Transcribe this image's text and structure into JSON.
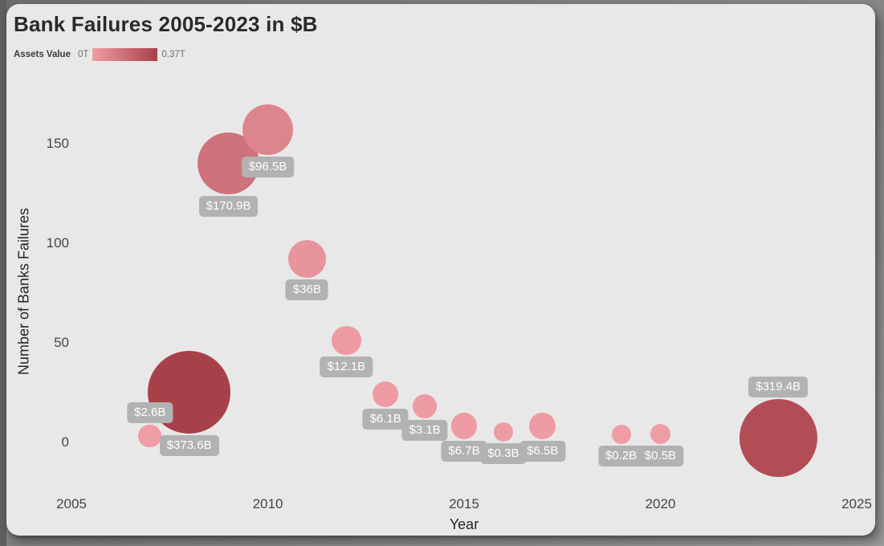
{
  "chart_data": {
    "type": "scatter",
    "title": "Bank Failures 2005-2023 in $B",
    "xlabel": "Year",
    "ylabel": "Number of Banks Failures",
    "x_ticks": [
      2005,
      2010,
      2015,
      2020,
      2025
    ],
    "y_ticks": [
      0,
      50,
      100,
      150
    ],
    "xlim": [
      2005,
      2025
    ],
    "ylim": [
      0,
      160
    ],
    "grid": false,
    "legend": {
      "title": "Assets Value",
      "min_label": "0T",
      "max_label": "0.37T",
      "position": "top-left"
    },
    "size_encoding": "assets_value_billions",
    "color_encoding": "assets_value_billions",
    "colors": {
      "bubble_min": "#ef9da5",
      "bubble_max": "#a84049",
      "label_bg": "#b2b2b2",
      "label_text": "#ffffff"
    },
    "points": [
      {
        "year": 2007,
        "failures": 3,
        "assets_b": 2.6,
        "label": "$2.6B",
        "label_position": "above"
      },
      {
        "year": 2008,
        "failures": 25,
        "assets_b": 373.6,
        "label": "$373.6B",
        "label_position": "below"
      },
      {
        "year": 2009,
        "failures": 140,
        "assets_b": 170.9,
        "label": "$170.9B",
        "label_position": "below"
      },
      {
        "year": 2010,
        "failures": 157,
        "assets_b": 96.5,
        "label": "$96.5B",
        "label_position": "below"
      },
      {
        "year": 2011,
        "failures": 92,
        "assets_b": 36,
        "label": "$36B",
        "label_position": "below"
      },
      {
        "year": 2012,
        "failures": 51,
        "assets_b": 12.1,
        "label": "$12.1B",
        "label_position": "below"
      },
      {
        "year": 2013,
        "failures": 24,
        "assets_b": 6.1,
        "label": "$6.1B",
        "label_position": "below"
      },
      {
        "year": 2014,
        "failures": 18,
        "assets_b": 3.1,
        "label": "$3.1B",
        "label_position": "below"
      },
      {
        "year": 2015,
        "failures": 8,
        "assets_b": 6.7,
        "label": "$6.7B",
        "label_position": "below"
      },
      {
        "year": 2016,
        "failures": 5,
        "assets_b": 0.3,
        "label": "$0.3B",
        "label_position": "below"
      },
      {
        "year": 2017,
        "failures": 8,
        "assets_b": 6.5,
        "label": "$6.5B",
        "label_position": "below"
      },
      {
        "year": 2019,
        "failures": 4,
        "assets_b": 0.2,
        "label": "$0.2B",
        "label_position": "below"
      },
      {
        "year": 2020,
        "failures": 4,
        "assets_b": 0.5,
        "label": "$0.5B",
        "label_position": "below"
      },
      {
        "year": 2023,
        "failures": 2,
        "assets_b": 319.4,
        "label": "$319.4B",
        "label_position": "above"
      }
    ]
  }
}
